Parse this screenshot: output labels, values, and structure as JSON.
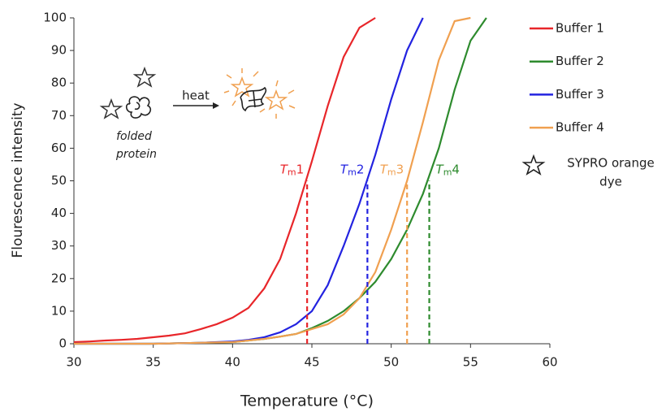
{
  "chart_data": {
    "type": "line",
    "xlabel": "Temperature (°C)",
    "ylabel": "Flourescence intensity",
    "x": [
      30,
      31,
      32,
      33,
      34,
      35,
      36,
      37,
      38,
      39,
      40,
      41,
      42,
      43,
      44,
      45,
      46,
      47,
      48,
      49,
      50,
      51,
      52,
      53,
      54,
      55,
      56
    ],
    "xlim": [
      30,
      60
    ],
    "xticks": [
      30,
      35,
      40,
      45,
      50,
      55,
      60
    ],
    "ylim": [
      0,
      100
    ],
    "yticks": [
      0,
      10,
      20,
      30,
      40,
      50,
      60,
      70,
      80,
      90,
      100
    ],
    "grid": false,
    "series": [
      {
        "name": "Buffer 1",
        "color": "#e8262a",
        "values": [
          0.5,
          0.7,
          1,
          1.2,
          1.5,
          2,
          2.5,
          3.2,
          4.5,
          6,
          8,
          11,
          17,
          26,
          40,
          56,
          73,
          88,
          97,
          100,
          null,
          null,
          null,
          null,
          null,
          null,
          null
        ]
      },
      {
        "name": "Buffer 2",
        "color": "#2e8b2e",
        "values": [
          0,
          0,
          0,
          0,
          0,
          0,
          0.1,
          0.2,
          0.3,
          0.4,
          0.5,
          1,
          1.5,
          2.2,
          3,
          4.8,
          7,
          10,
          14,
          19,
          26,
          35,
          46,
          60,
          78,
          93,
          100
        ]
      },
      {
        "name": "Buffer 3",
        "color": "#2323e0",
        "values": [
          0,
          0,
          0,
          0,
          0,
          0,
          0.1,
          0.2,
          0.3,
          0.5,
          0.7,
          1.2,
          2,
          3.5,
          6,
          10,
          18,
          30,
          43,
          58,
          75,
          90,
          100,
          null,
          null,
          null,
          null
        ]
      },
      {
        "name": "Buffer 4",
        "color": "#f0a050",
        "values": [
          0,
          0,
          0,
          0,
          0,
          0,
          0.1,
          0.2,
          0.3,
          0.4,
          0.5,
          1,
          1.5,
          2.2,
          3,
          4.5,
          6,
          9,
          14,
          22,
          35,
          50,
          68,
          87,
          99,
          100,
          null
        ]
      }
    ],
    "tm_markers": [
      {
        "x": 44.7,
        "y": 50,
        "symbol": "T",
        "subscript": "m",
        "index": "1",
        "color": "#e8262a"
      },
      {
        "x": 48.5,
        "y": 50,
        "symbol": "T",
        "subscript": "m",
        "index": "2",
        "color": "#2323e0"
      },
      {
        "x": 51,
        "y": 50,
        "symbol": "T",
        "subscript": "m",
        "index": "3",
        "color": "#f0a050"
      },
      {
        "x": 52.4,
        "y": 50,
        "symbol": "T",
        "subscript": "m",
        "index": "4",
        "color": "#2e8b2e"
      }
    ],
    "dye_legend": [
      "SYPRO orange",
      "dye"
    ],
    "illustration": {
      "arrow_label": "heat",
      "caption": [
        "folded",
        "protein"
      ]
    }
  }
}
